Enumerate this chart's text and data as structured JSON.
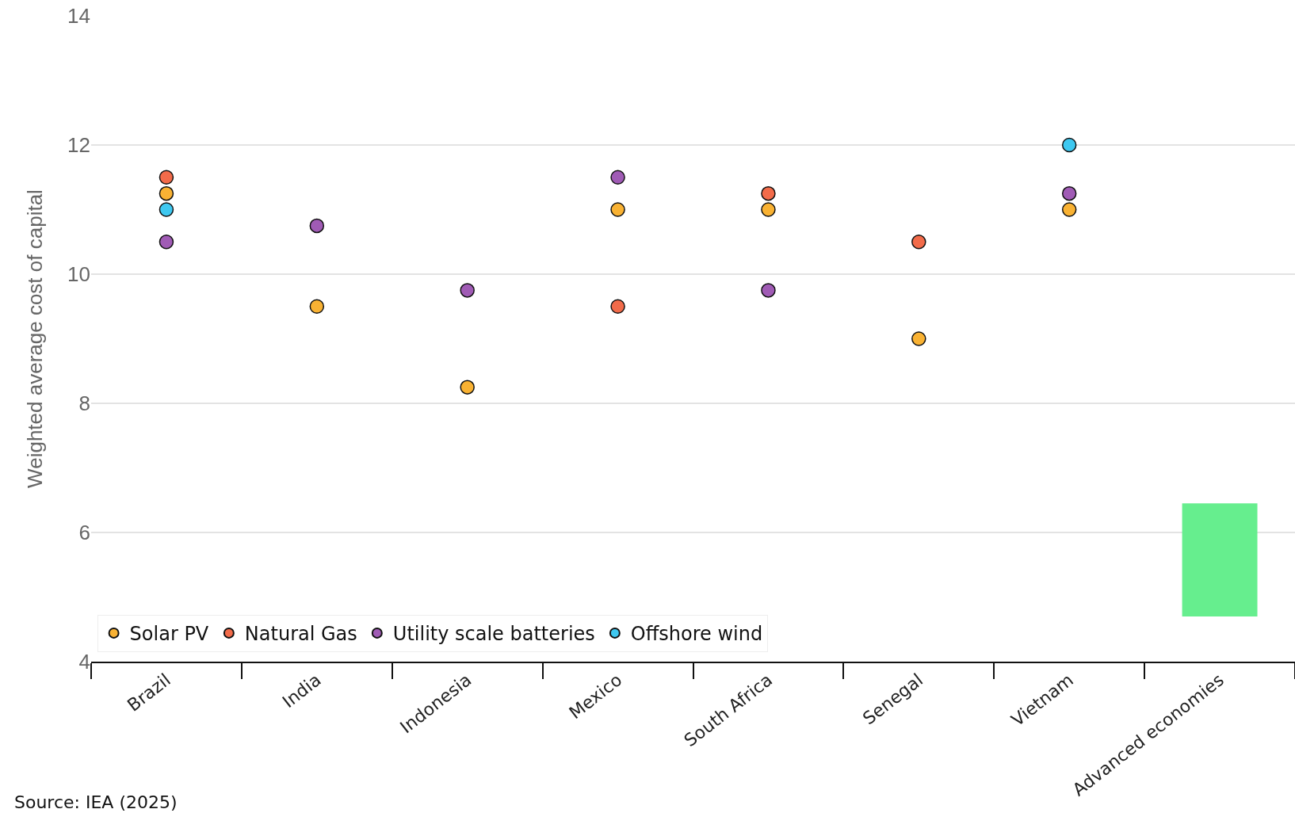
{
  "chart_data": {
    "type": "scatter",
    "ylabel": "Weighted average cost of capital",
    "categories": [
      "Brazil",
      "India",
      "Indonesia",
      "Mexico",
      "South Africa",
      "Senegal",
      "Vietnam",
      "Advanced economies"
    ],
    "series": [
      {
        "name": "Solar PV",
        "color": "#f9b233",
        "values": [
          11.25,
          9.5,
          8.25,
          11,
          11,
          9,
          11,
          null
        ]
      },
      {
        "name": "Natural Gas",
        "color": "#f26b4a",
        "values": [
          11.5,
          null,
          null,
          9.5,
          11.25,
          10.5,
          null,
          null
        ]
      },
      {
        "name": "Utility scale batteries",
        "color": "#a05bb5",
        "values": [
          10.5,
          10.75,
          9.75,
          11.5,
          9.75,
          null,
          11.25,
          null
        ]
      },
      {
        "name": "Offshore wind",
        "color": "#3ec8f0",
        "values": [
          11,
          null,
          null,
          null,
          null,
          null,
          12,
          null
        ]
      },
      {
        "type": "bar",
        "color": "#66ee8e",
        "values": [
          null,
          null,
          null,
          null,
          null,
          null,
          null,
          1.75
        ],
        "base": [
          null,
          null,
          null,
          null,
          null,
          null,
          null,
          4.7
        ]
      }
    ],
    "ylim": [
      4,
      14
    ],
    "yticks": [
      4,
      6,
      8,
      10,
      12,
      14
    ],
    "grid": "y",
    "legend": "bottom left",
    "marker": "circle",
    "annotations": [
      "Source: IEA (2025)"
    ]
  }
}
